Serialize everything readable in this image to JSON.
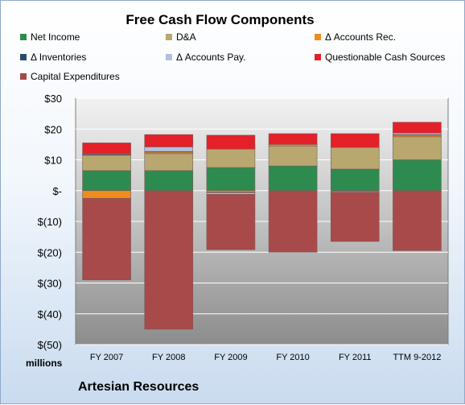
{
  "chart_data": {
    "type": "bar",
    "stacked": true,
    "title": "Free Cash Flow Components",
    "unit_label": "millions",
    "company": "Artesian Resources",
    "categories": [
      "FY 2007",
      "FY 2008",
      "FY 2009",
      "FY 2010",
      "FY 2011",
      "TTM 9-2012"
    ],
    "ylim": [
      -50,
      30
    ],
    "yticks": [
      30,
      20,
      10,
      0,
      -10,
      -20,
      -30,
      -40,
      -50
    ],
    "ytick_labels": [
      "$30",
      "$20",
      "$10",
      "$-",
      "$(10)",
      "$(20)",
      "$(30)",
      "$(40)",
      "$(50)"
    ],
    "grid": true,
    "legend_position": "top",
    "series": [
      {
        "name": "Net Income",
        "color": "#2e8b4f",
        "values": [
          6.5,
          6.5,
          7.5,
          8.0,
          7.0,
          10.0
        ]
      },
      {
        "name": "D&A",
        "color": "#b8a870",
        "values": [
          5.0,
          5.5,
          6.0,
          6.5,
          7.0,
          7.5
        ]
      },
      {
        "name": "Δ Accounts Rec.",
        "color": "#f08c1e",
        "values": [
          -2.5,
          0.5,
          -0.5,
          0.5,
          0.0,
          0.5
        ]
      },
      {
        "name": "Δ Inventories",
        "color": "#2a4b6e",
        "values": [
          0.3,
          0.2,
          -0.2,
          0.0,
          -0.2,
          0.2
        ]
      },
      {
        "name": "Δ Accounts Pay.",
        "color": "#aec2e0",
        "values": [
          0.2,
          1.5,
          -0.5,
          0.0,
          -0.3,
          0.5
        ]
      },
      {
        "name": "Questionable Cash Sources",
        "color": "#e42028",
        "values": [
          3.5,
          4.0,
          4.5,
          3.5,
          4.5,
          3.5
        ]
      },
      {
        "name": "Capital Expenditures",
        "color": "#a84a4a",
        "values": [
          -26.5,
          -45.0,
          -18.0,
          -20.0,
          -16.0,
          -19.5
        ]
      }
    ]
  }
}
